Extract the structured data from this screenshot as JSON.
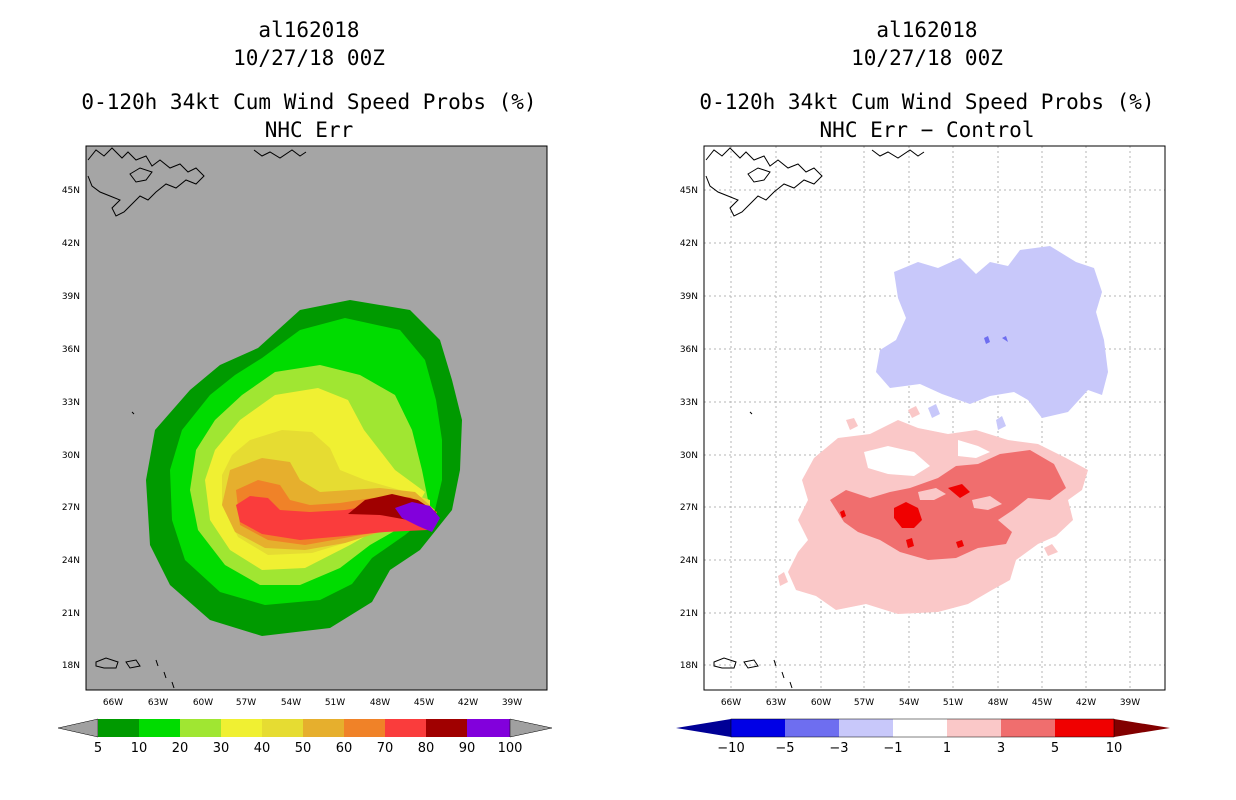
{
  "panels": [
    {
      "storm_id": "al162018",
      "date": "10/27/18 00Z",
      "product": "0-120h 34kt Cum Wind Speed Probs (%)",
      "subtitle": "NHC Err",
      "lat_labels": [
        "45N",
        "42N",
        "39N",
        "36N",
        "33N",
        "30N",
        "27N",
        "24N",
        "21N",
        "18N"
      ],
      "lon_labels": [
        "66W",
        "63W",
        "60W",
        "57W",
        "54W",
        "51W",
        "48W",
        "45W",
        "42W",
        "39W"
      ],
      "colorbar": {
        "labels": [
          "5",
          "10",
          "20",
          "30",
          "40",
          "50",
          "60",
          "70",
          "80",
          "90",
          "100"
        ],
        "colors": [
          "#009a00",
          "#00dc00",
          "#a0e632",
          "#f0f032",
          "#e6dc32",
          "#e6af2d",
          "#f08228",
          "#fa3c3c",
          "#a00000",
          "#8200dc"
        ],
        "ends": "#a0a0a0"
      }
    },
    {
      "storm_id": "al162018",
      "date": "10/27/18 00Z",
      "product": "0-120h 34kt Cum Wind Speed Probs (%)",
      "subtitle": "NHC Err − Control",
      "lat_labels": [
        "45N",
        "42N",
        "39N",
        "36N",
        "33N",
        "30N",
        "27N",
        "24N",
        "21N",
        "18N"
      ],
      "lon_labels": [
        "66W",
        "63W",
        "60W",
        "57W",
        "54W",
        "51W",
        "48W",
        "45W",
        "42W",
        "39W"
      ],
      "colorbar": {
        "labels": [
          "−10",
          "−5",
          "−3",
          "−1",
          "1",
          "3",
          "5",
          "10"
        ],
        "colors": [
          "#0000e6",
          "#6e6ef0",
          "#c8c8fa",
          "#ffffff",
          "#fac8c8",
          "#f06e6e",
          "#f00000"
        ],
        "low_end": "#000096",
        "high_end": "#820000"
      }
    }
  ]
}
